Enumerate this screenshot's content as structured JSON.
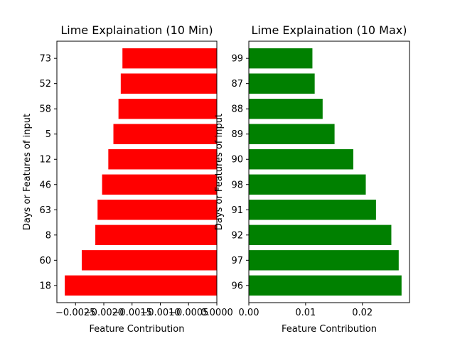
{
  "chart_data": [
    {
      "type": "bar",
      "orientation": "horizontal",
      "title": "Lime Explaination (10 Min)",
      "xlabel": "Feature Contribution",
      "ylabel": "Days or Features of input",
      "color": "#ff0000",
      "categories": [
        "18",
        "60",
        "8",
        "63",
        "46",
        "12",
        "5",
        "58",
        "52",
        "73"
      ],
      "values": [
        -0.00269,
        -0.00239,
        -0.00215,
        -0.00211,
        -0.00203,
        -0.00192,
        -0.00183,
        -0.00174,
        -0.0017,
        -0.00167
      ],
      "xlim": [
        -0.00283,
        0.0
      ],
      "xticks": [
        -0.0025,
        -0.002,
        -0.0015,
        -0.001,
        -0.0005,
        0.0
      ],
      "xtick_labels": [
        "−0.0025",
        "−0.0020",
        "−0.0015",
        "−0.0010",
        "−0.0005",
        "0.0000"
      ],
      "grid": false
    },
    {
      "type": "bar",
      "orientation": "horizontal",
      "title": "Lime Explaination (10 Max)",
      "xlabel": "Feature Contribution",
      "ylabel": "Days or Features of input",
      "color": "#008000",
      "categories": [
        "96",
        "97",
        "92",
        "91",
        "98",
        "90",
        "89",
        "88",
        "87",
        "99"
      ],
      "values": [
        0.0269,
        0.0264,
        0.0251,
        0.0224,
        0.0206,
        0.0184,
        0.0151,
        0.013,
        0.0116,
        0.0112
      ],
      "xlim": [
        0.0,
        0.0283
      ],
      "xticks": [
        0.0,
        0.01,
        0.02
      ],
      "xtick_labels": [
        "0.00",
        "0.01",
        "0.02"
      ],
      "grid": false
    }
  ]
}
